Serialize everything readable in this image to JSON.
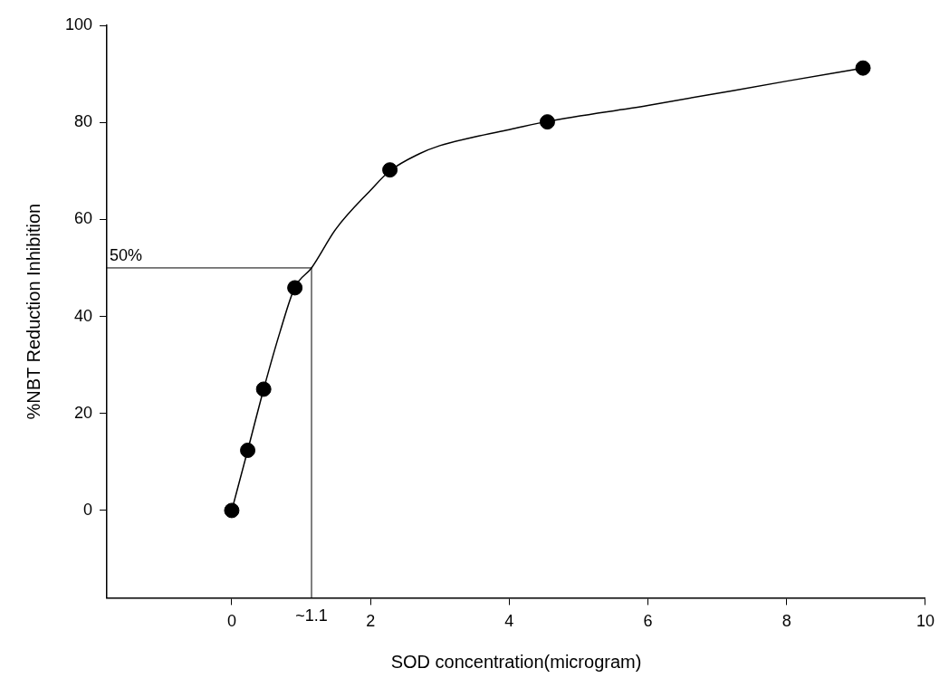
{
  "chart_data": {
    "type": "scatter",
    "xlabel": "SOD concentration(microgram)",
    "ylabel": "%NBT Reduction Inhibition",
    "xlim": [
      -1.8,
      10
    ],
    "xticks": [
      0,
      2,
      4,
      6,
      8,
      10
    ],
    "ylim": [
      -18,
      100
    ],
    "yticks": [
      0,
      20,
      40,
      60,
      80,
      100
    ],
    "grid": false,
    "legend": false,
    "line_style": "solid",
    "series": [
      {
        "type": "line",
        "marker": "none",
        "color": "#000000",
        "x": [
          0,
          0.23,
          0.46,
          0.7,
          0.91,
          1.15,
          1.5,
          2,
          2.28,
          2.7,
          3,
          3.5,
          4,
          4.55,
          6,
          8,
          9.1
        ],
        "values": [
          0,
          12.4,
          25,
          37,
          46,
          50,
          58,
          66,
          70,
          73.5,
          75.2,
          77,
          78.5,
          80.2,
          83.5,
          88.5,
          91.2
        ]
      },
      {
        "marker": "circle",
        "color": "#000000",
        "x": [
          0,
          0.23,
          0.46,
          0.91,
          2.28,
          4.55,
          9.1
        ],
        "values": [
          0,
          12.4,
          25,
          45.9,
          70.2,
          80.1,
          91.2
        ]
      }
    ],
    "ref_lines": [
      {
        "axis": "y",
        "value": 50,
        "label": "50%",
        "color": "#000000"
      },
      {
        "axis": "x",
        "value": 1.15,
        "label": "~1.1",
        "color": "#000000"
      }
    ]
  }
}
